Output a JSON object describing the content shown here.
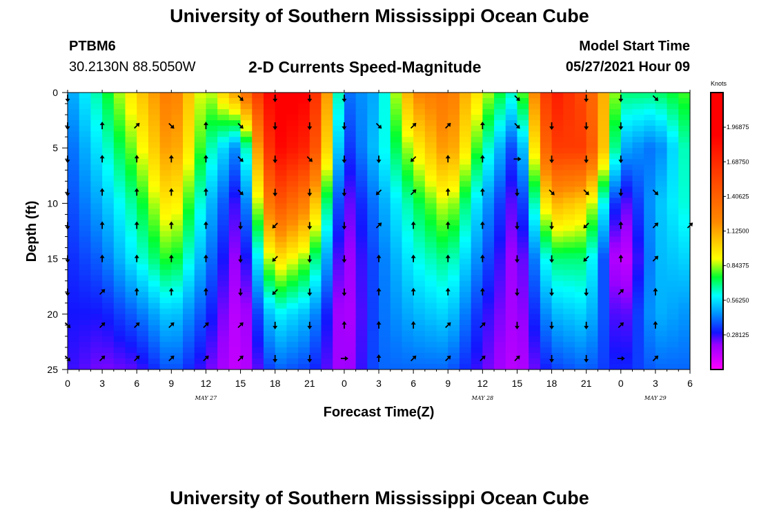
{
  "page": {
    "title": "University of Southern Mississippi Ocean Cube",
    "footer_title": "University of Southern Mississippi Ocean Cube",
    "station": "PTBM6",
    "coordinates": "30.2130N  88.5050W",
    "subtitle": "2-D Currents Speed-Magnitude",
    "model_start_label": "Model Start Time",
    "model_start_value": "05/27/2021 Hour 09"
  },
  "colors": {
    "background": "#ffffff",
    "axis": "#000000",
    "arrow": "#000000"
  },
  "chart_data": {
    "type": "heatmap",
    "title": "2-D Currents Speed-Magnitude",
    "xlabel": "Forecast Time(Z)",
    "ylabel": "Depth (ft)",
    "x_range_hours": [
      0,
      54
    ],
    "y_range_ft": [
      0,
      25
    ],
    "x_tick_labels": [
      "0",
      "3",
      "6",
      "9",
      "12",
      "15",
      "18",
      "21",
      "0",
      "3",
      "6",
      "9",
      "12",
      "15",
      "18",
      "21",
      "0",
      "3",
      "6"
    ],
    "y_tick_labels": [
      "0",
      "5",
      "10",
      "15",
      "20",
      "25"
    ],
    "date_labels": [
      {
        "text": "MAY 27",
        "hour": 12
      },
      {
        "text": "MAY 28",
        "hour": 36
      },
      {
        "text": "MAY 29",
        "hour": 51
      }
    ],
    "colorbar": {
      "units": "Knots",
      "min": 0.0,
      "max": 2.25,
      "tick_labels": [
        "1.96875",
        "1.68750",
        "1.40625",
        "1.12500",
        "0.84375",
        "0.56250",
        "0.28125"
      ],
      "tick_values": [
        1.96875,
        1.6875,
        1.40625,
        1.125,
        0.84375,
        0.5625,
        0.28125
      ],
      "stops": [
        {
          "v": 0.0,
          "c": "#ff00ff"
        },
        {
          "v": 0.2,
          "c": "#9a00ff"
        },
        {
          "v": 0.3,
          "c": "#1414ff"
        },
        {
          "v": 0.45,
          "c": "#0090ff"
        },
        {
          "v": 0.6,
          "c": "#00ffff"
        },
        {
          "v": 0.75,
          "c": "#00ff30"
        },
        {
          "v": 0.9,
          "c": "#ffff00"
        },
        {
          "v": 1.2,
          "c": "#ff8800"
        },
        {
          "v": 1.9,
          "c": "#ff0000"
        },
        {
          "v": 2.25,
          "c": "#ff0000"
        }
      ]
    },
    "speed_columns": {
      "depths_ft": [
        0,
        5,
        10,
        15,
        20,
        25
      ],
      "hours": [
        0,
        3,
        6,
        9,
        12,
        15,
        18,
        21,
        24,
        27,
        30,
        33,
        36,
        39,
        42,
        45,
        48,
        51,
        54
      ],
      "speeds": [
        [
          0.45,
          0.38,
          0.35,
          0.32,
          0.3,
          0.28
        ],
        [
          0.7,
          0.6,
          0.5,
          0.4,
          0.3,
          0.22
        ],
        [
          1.0,
          0.85,
          0.7,
          0.6,
          0.4,
          0.25
        ],
        [
          1.3,
          1.2,
          1.0,
          0.8,
          0.55,
          0.4
        ],
        [
          0.8,
          0.7,
          0.55,
          0.45,
          0.35,
          0.25
        ],
        [
          1.2,
          0.4,
          0.22,
          0.15,
          0.1,
          0.1
        ],
        [
          2.0,
          1.9,
          1.5,
          1.0,
          0.6,
          0.4
        ],
        [
          1.9,
          1.7,
          1.2,
          0.8,
          0.5,
          0.35
        ],
        [
          0.4,
          0.3,
          0.2,
          0.15,
          0.12,
          0.15
        ],
        [
          0.5,
          0.55,
          0.45,
          0.4,
          0.4,
          0.4
        ],
        [
          1.2,
          0.9,
          0.7,
          0.6,
          0.5,
          0.4
        ],
        [
          1.3,
          1.2,
          0.9,
          0.7,
          0.55,
          0.4
        ],
        [
          0.9,
          0.7,
          0.5,
          0.4,
          0.3,
          0.25
        ],
        [
          0.6,
          0.3,
          0.2,
          0.15,
          0.15,
          0.12
        ],
        [
          1.8,
          1.6,
          1.1,
          0.7,
          0.5,
          0.35
        ],
        [
          1.5,
          1.6,
          1.0,
          0.7,
          0.55,
          0.4
        ],
        [
          0.7,
          0.5,
          0.2,
          0.05,
          0.2,
          0.3
        ],
        [
          0.7,
          0.4,
          0.5,
          0.5,
          0.5,
          0.4
        ],
        [
          0.8,
          0.7,
          0.65,
          0.55,
          0.45,
          0.4
        ]
      ]
    },
    "arrows": {
      "columns": [
        {
          "hour": 0,
          "dirs": [
            "S",
            "S",
            "S",
            "S",
            "S",
            "S",
            "S",
            "SE",
            "SE"
          ]
        },
        {
          "hour": 3,
          "dirs": [
            "",
            "N",
            "N",
            "N",
            "N",
            "N",
            "NE",
            "NE",
            "NE"
          ]
        },
        {
          "hour": 6,
          "dirs": [
            "",
            "NE",
            "N",
            "N",
            "N",
            "N",
            "N",
            "NE",
            "NE"
          ]
        },
        {
          "hour": 9,
          "dirs": [
            "",
            "SE",
            "N",
            "N",
            "N",
            "N",
            "N",
            "NE",
            "NE"
          ]
        },
        {
          "hour": 12,
          "dirs": [
            "",
            "N",
            "N",
            "N",
            "N",
            "N",
            "N",
            "NE",
            "NE"
          ]
        },
        {
          "hour": 15,
          "dirs": [
            "SE",
            "SE",
            "SE",
            "SE",
            "S",
            "S",
            "S",
            "NE",
            "NE"
          ]
        },
        {
          "hour": 18,
          "dirs": [
            "S",
            "S",
            "S",
            "S",
            "SW",
            "SW",
            "SW",
            "S",
            "S"
          ]
        },
        {
          "hour": 21,
          "dirs": [
            "S",
            "S",
            "SE",
            "S",
            "S",
            "S",
            "S",
            "S",
            "S"
          ]
        },
        {
          "hour": 24,
          "dirs": [
            "S",
            "S",
            "S",
            "S",
            "S",
            "S",
            "S",
            "N",
            "E"
          ]
        },
        {
          "hour": 27,
          "dirs": [
            "",
            "SE",
            "S",
            "SW",
            "NE",
            "N",
            "N",
            "N",
            "N"
          ]
        },
        {
          "hour": 30,
          "dirs": [
            "",
            "NE",
            "SW",
            "NE",
            "N",
            "N",
            "N",
            "N",
            "NE"
          ]
        },
        {
          "hour": 33,
          "dirs": [
            "",
            "NE",
            "N",
            "N",
            "N",
            "N",
            "N",
            "NE",
            "NE"
          ]
        },
        {
          "hour": 36,
          "dirs": [
            "",
            "N",
            "N",
            "N",
            "N",
            "N",
            "N",
            "NE",
            "NE"
          ]
        },
        {
          "hour": 39,
          "dirs": [
            "SE",
            "SE",
            "E",
            "S",
            "S",
            "S",
            "S",
            "S",
            "NE"
          ]
        },
        {
          "hour": 42,
          "dirs": [
            "",
            "S",
            "S",
            "SE",
            "S",
            "S",
            "S",
            "S",
            "S"
          ]
        },
        {
          "hour": 45,
          "dirs": [
            "S",
            "S",
            "S",
            "SE",
            "SW",
            "SW",
            "S",
            "S",
            "S"
          ]
        },
        {
          "hour": 48,
          "dirs": [
            "S",
            "S",
            "S",
            "S",
            "N",
            "N",
            "NE",
            "NE",
            "E"
          ]
        },
        {
          "hour": 51,
          "dirs": [
            "SE",
            "",
            "",
            "SE",
            "NE",
            "NE",
            "N",
            "N",
            "NE"
          ]
        },
        {
          "hour": 54,
          "dirs": [
            "",
            "",
            "",
            "",
            "NE",
            "",
            "",
            "",
            ""
          ]
        }
      ],
      "depths_ft": [
        0,
        3,
        6,
        9,
        12,
        15,
        18,
        21,
        24
      ]
    }
  }
}
